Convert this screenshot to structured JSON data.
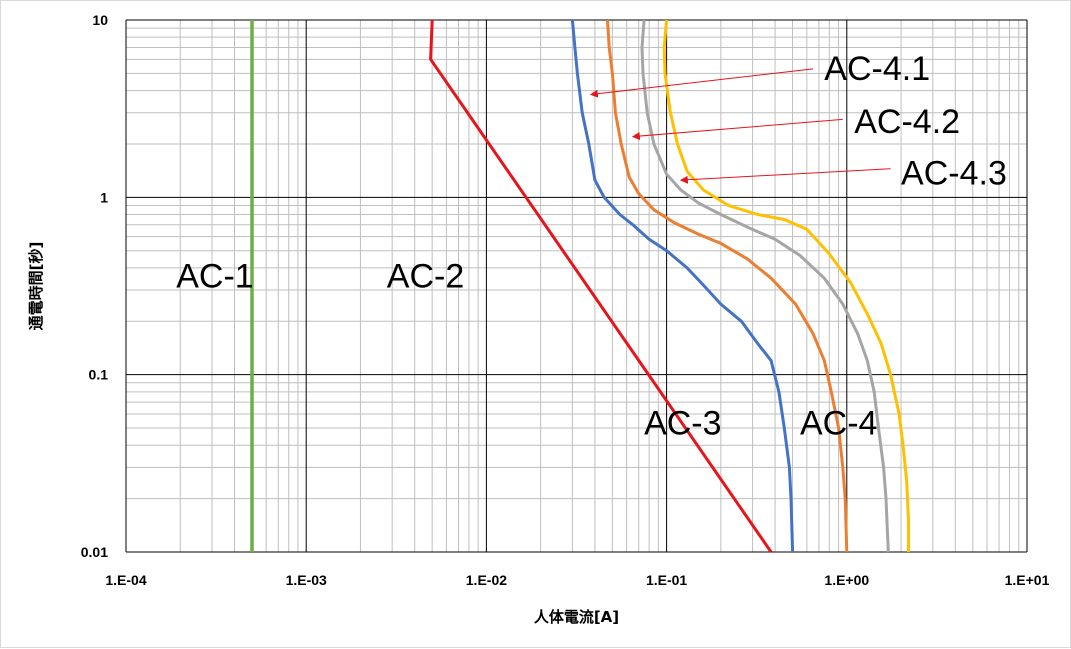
{
  "chart_data": {
    "type": "line",
    "title": "",
    "xlabel": "人体電流[A]",
    "ylabel": "通電時間[秒]",
    "x_scale": "log",
    "y_scale": "log",
    "xlim": [
      0.0001,
      10
    ],
    "ylim": [
      0.01,
      10
    ],
    "x_tick_labels": [
      "1.E-04",
      "1.E-03",
      "1.E-02",
      "1.E-01",
      "1.E+00",
      "1.E+01"
    ],
    "y_tick_labels": [
      "0.01",
      "0.1",
      "1",
      "10"
    ],
    "grid": true,
    "colors": {
      "green": "#70ad47",
      "red": "#e8141b",
      "blue": "#4472c4",
      "orange": "#ed7d31",
      "gray": "#a5a5a5",
      "yellow": "#ffc000",
      "arrow": "#e8141b"
    },
    "series": [
      {
        "color": "green",
        "width": 3.5,
        "points": [
          [
            0.0005,
            10
          ],
          [
            0.0005,
            0.01
          ]
        ]
      },
      {
        "color": "red",
        "width": 3,
        "points": [
          [
            0.005,
            10
          ],
          [
            0.0049,
            6
          ],
          [
            0.38,
            0.01
          ]
        ]
      },
      {
        "color": "blue",
        "width": 3,
        "points": [
          [
            0.03,
            10
          ],
          [
            0.031,
            7
          ],
          [
            0.032,
            5
          ],
          [
            0.034,
            3
          ],
          [
            0.037,
            2
          ],
          [
            0.04,
            1.25
          ],
          [
            0.045,
            1.0
          ],
          [
            0.055,
            0.8
          ],
          [
            0.065,
            0.7
          ],
          [
            0.08,
            0.58
          ],
          [
            0.1,
            0.5
          ],
          [
            0.13,
            0.4
          ],
          [
            0.16,
            0.32
          ],
          [
            0.2,
            0.25
          ],
          [
            0.26,
            0.2
          ],
          [
            0.32,
            0.15
          ],
          [
            0.38,
            0.12
          ],
          [
            0.42,
            0.08
          ],
          [
            0.45,
            0.05
          ],
          [
            0.48,
            0.03
          ],
          [
            0.49,
            0.02
          ],
          [
            0.5,
            0.01
          ]
        ]
      },
      {
        "color": "orange",
        "width": 3,
        "points": [
          [
            0.047,
            10
          ],
          [
            0.048,
            7
          ],
          [
            0.05,
            5
          ],
          [
            0.052,
            3
          ],
          [
            0.056,
            2
          ],
          [
            0.062,
            1.3
          ],
          [
            0.07,
            1.05
          ],
          [
            0.085,
            0.85
          ],
          [
            0.11,
            0.72
          ],
          [
            0.15,
            0.62
          ],
          [
            0.2,
            0.55
          ],
          [
            0.28,
            0.45
          ],
          [
            0.38,
            0.35
          ],
          [
            0.52,
            0.25
          ],
          [
            0.65,
            0.17
          ],
          [
            0.75,
            0.12
          ],
          [
            0.82,
            0.08
          ],
          [
            0.9,
            0.05
          ],
          [
            0.95,
            0.03
          ],
          [
            0.98,
            0.02
          ],
          [
            1.0,
            0.01
          ]
        ]
      },
      {
        "color": "gray",
        "width": 3,
        "points": [
          [
            0.075,
            10
          ],
          [
            0.073,
            7
          ],
          [
            0.074,
            5
          ],
          [
            0.078,
            3
          ],
          [
            0.085,
            2
          ],
          [
            0.1,
            1.35
          ],
          [
            0.12,
            1.1
          ],
          [
            0.15,
            0.93
          ],
          [
            0.2,
            0.8
          ],
          [
            0.28,
            0.68
          ],
          [
            0.4,
            0.58
          ],
          [
            0.55,
            0.47
          ],
          [
            0.75,
            0.35
          ],
          [
            0.95,
            0.25
          ],
          [
            1.15,
            0.17
          ],
          [
            1.3,
            0.12
          ],
          [
            1.42,
            0.08
          ],
          [
            1.5,
            0.05
          ],
          [
            1.6,
            0.03
          ],
          [
            1.65,
            0.02
          ],
          [
            1.7,
            0.01
          ]
        ]
      },
      {
        "color": "yellow",
        "width": 3,
        "points": [
          [
            0.1,
            10
          ],
          [
            0.097,
            7
          ],
          [
            0.098,
            5
          ],
          [
            0.105,
            3
          ],
          [
            0.115,
            2
          ],
          [
            0.13,
            1.4
          ],
          [
            0.16,
            1.1
          ],
          [
            0.22,
            0.9
          ],
          [
            0.32,
            0.8
          ],
          [
            0.45,
            0.75
          ],
          [
            0.6,
            0.66
          ],
          [
            0.8,
            0.48
          ],
          [
            1.05,
            0.33
          ],
          [
            1.3,
            0.22
          ],
          [
            1.55,
            0.15
          ],
          [
            1.75,
            0.1
          ],
          [
            1.95,
            0.06
          ],
          [
            2.05,
            0.04
          ],
          [
            2.15,
            0.025
          ],
          [
            2.2,
            0.015
          ],
          [
            2.2,
            0.01
          ]
        ]
      }
    ],
    "region_labels": [
      {
        "text": "AC-1",
        "x": 0.00019,
        "y": 0.31
      },
      {
        "text": "AC-2",
        "x": 0.0028,
        "y": 0.31
      },
      {
        "text": "AC-3",
        "x": 0.075,
        "y": 0.046
      },
      {
        "text": "AC-4",
        "x": 0.55,
        "y": 0.046
      }
    ],
    "annotations": [
      {
        "text": "AC-4.1",
        "x": 0.75,
        "y": 4.6,
        "arrow_from": [
          0.65,
          5.3
        ],
        "arrow_to": [
          0.038,
          3.8
        ]
      },
      {
        "text": "AC-4.2",
        "x": 1.1,
        "y": 2.3,
        "arrow_from": [
          0.95,
          2.75
        ],
        "arrow_to": [
          0.065,
          2.2
        ]
      },
      {
        "text": "AC-4.3",
        "x": 2.0,
        "y": 1.18,
        "arrow_from": [
          1.75,
          1.45
        ],
        "arrow_to": [
          0.12,
          1.25
        ]
      }
    ]
  }
}
